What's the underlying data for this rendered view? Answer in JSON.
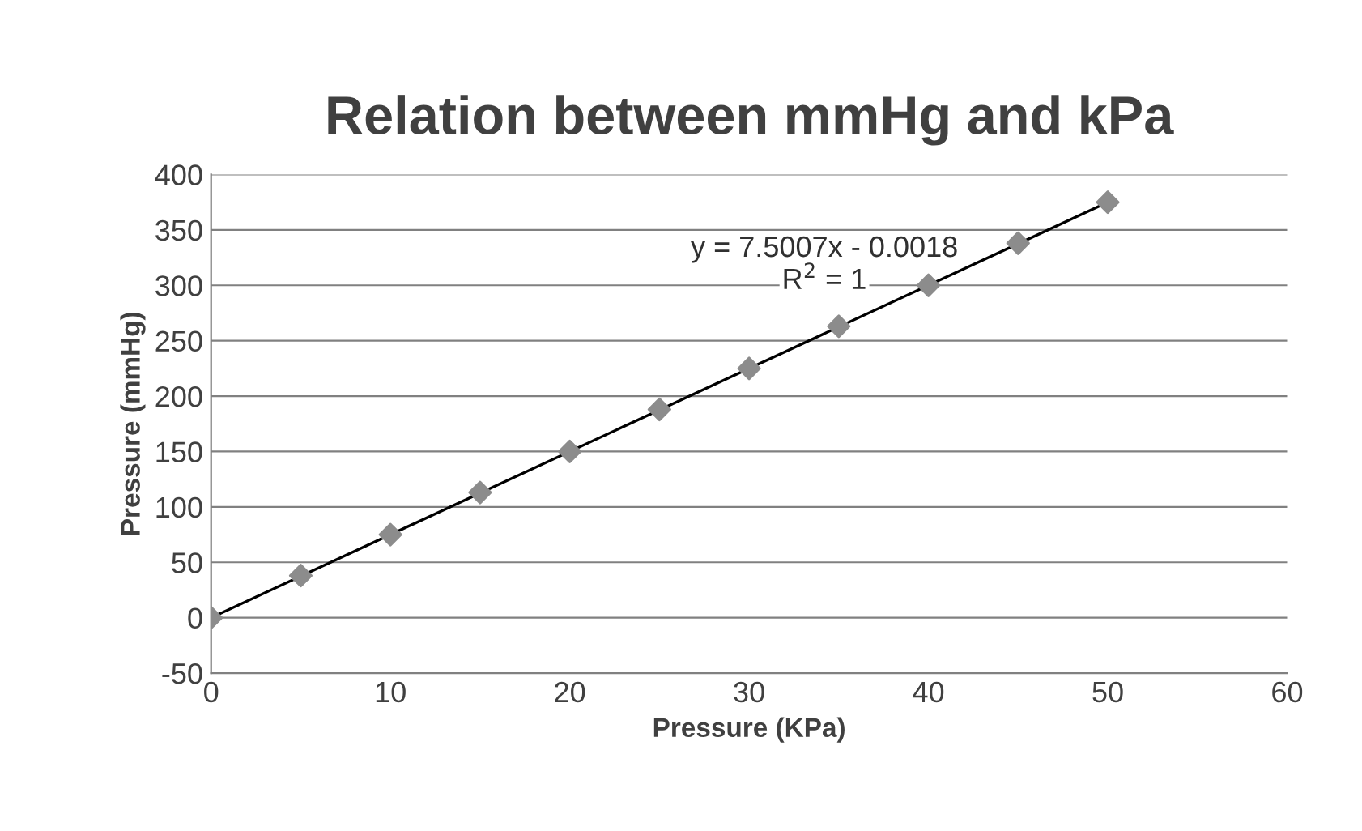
{
  "chart_data": {
    "type": "scatter",
    "title": "Relation between mmHg and kPa",
    "xlabel": "Pressure (KPa)",
    "ylabel": "Pressure (mmHg)",
    "xlim": [
      0,
      60
    ],
    "xticks": [
      0,
      10,
      20,
      30,
      40,
      50,
      60
    ],
    "ylim": [
      -50,
      400
    ],
    "yticks": [
      -50,
      0,
      50,
      100,
      150,
      200,
      250,
      300,
      350,
      400
    ],
    "grid": "y",
    "legend": false,
    "series": [
      {
        "marker": "diamond",
        "color": "#8c8c8c",
        "x": [
          0,
          5,
          10,
          15,
          20,
          25,
          30,
          35,
          40,
          45,
          50
        ],
        "values": [
          0,
          38,
          75,
          113,
          150,
          188,
          225,
          263,
          300,
          338,
          375
        ]
      },
      {
        "type": "line",
        "marker": "none",
        "line_style": "solid",
        "color": "#000000",
        "x": [
          0,
          50
        ],
        "values": [
          0,
          375
        ]
      }
    ],
    "annotations": [
      "y = 7.5007x - 0.0018",
      "R$^{2}$ = 1"
    ]
  }
}
